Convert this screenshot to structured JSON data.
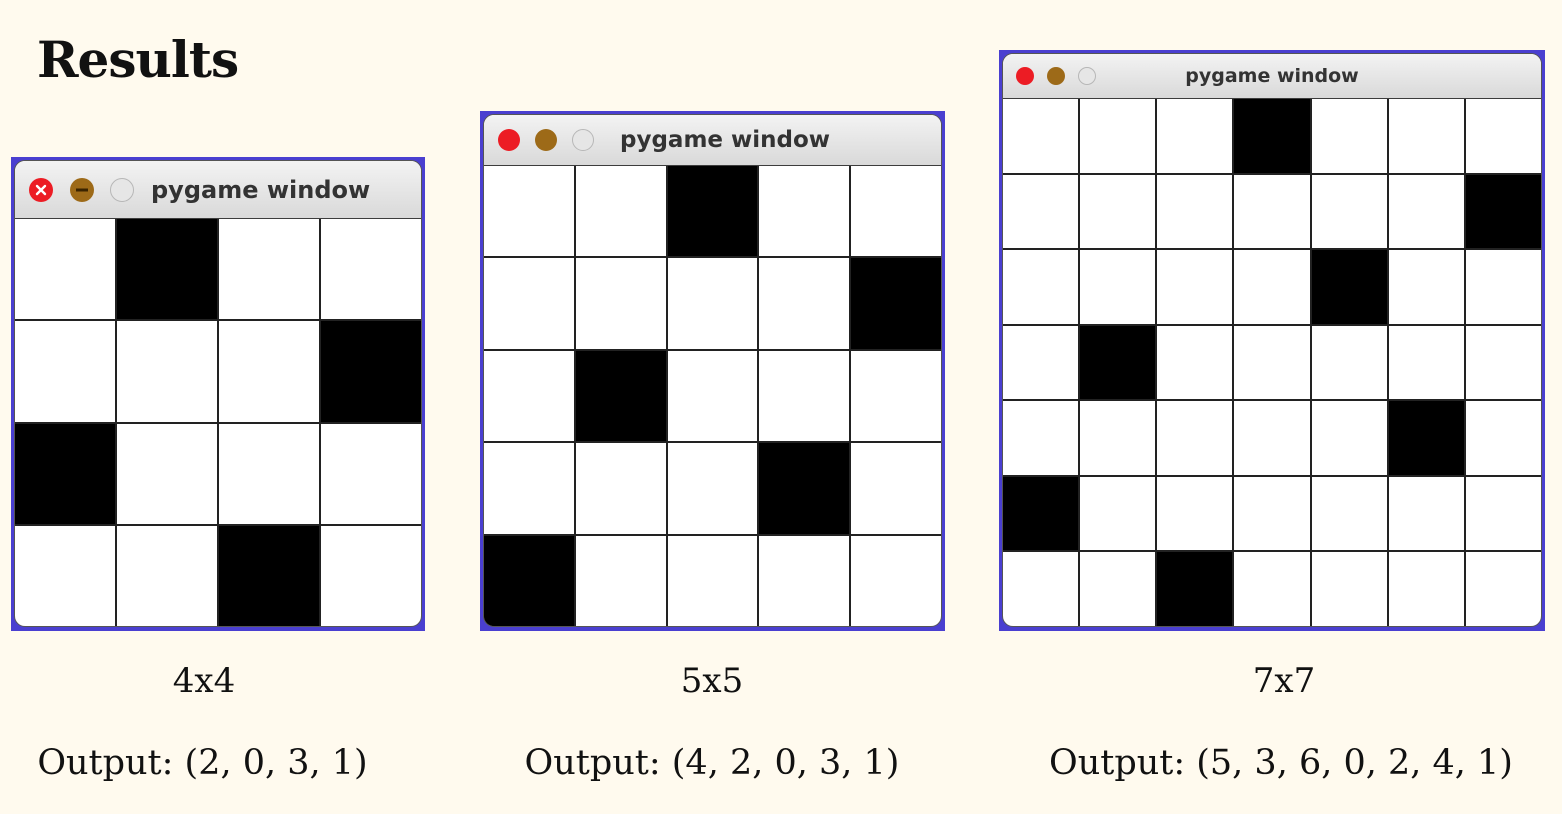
{
  "heading": "Results",
  "windows": [
    {
      "title": "pygame window",
      "size_label": "4x4",
      "output_text": "Output: (2, 0, 3, 1)",
      "n": 4,
      "queen_cols_by_row": [
        1,
        3,
        0,
        2
      ]
    },
    {
      "title": "pygame window",
      "size_label": "5x5",
      "output_text": "Output: (4, 2, 0, 3, 1)",
      "n": 5,
      "queen_cols_by_row": [
        2,
        4,
        1,
        3,
        0
      ]
    },
    {
      "title": "pygame window",
      "size_label": "7x7",
      "output_text": "Output: (5, 3, 6, 0, 2, 4, 1)",
      "n": 7,
      "queen_cols_by_row": [
        3,
        6,
        4,
        1,
        5,
        0,
        2
      ]
    }
  ],
  "colors": {
    "page_background": "#fffaee",
    "window_frame": "#4a3fd0",
    "close_button": "#ec1c24",
    "minimize_button": "#9d6a18",
    "zoom_button": "#e6e6e6",
    "queen_cell": "#000000",
    "empty_cell": "#ffffff"
  },
  "icons": {
    "close": "close-icon",
    "minimize": "minimize-icon",
    "zoom": "zoom-icon"
  }
}
